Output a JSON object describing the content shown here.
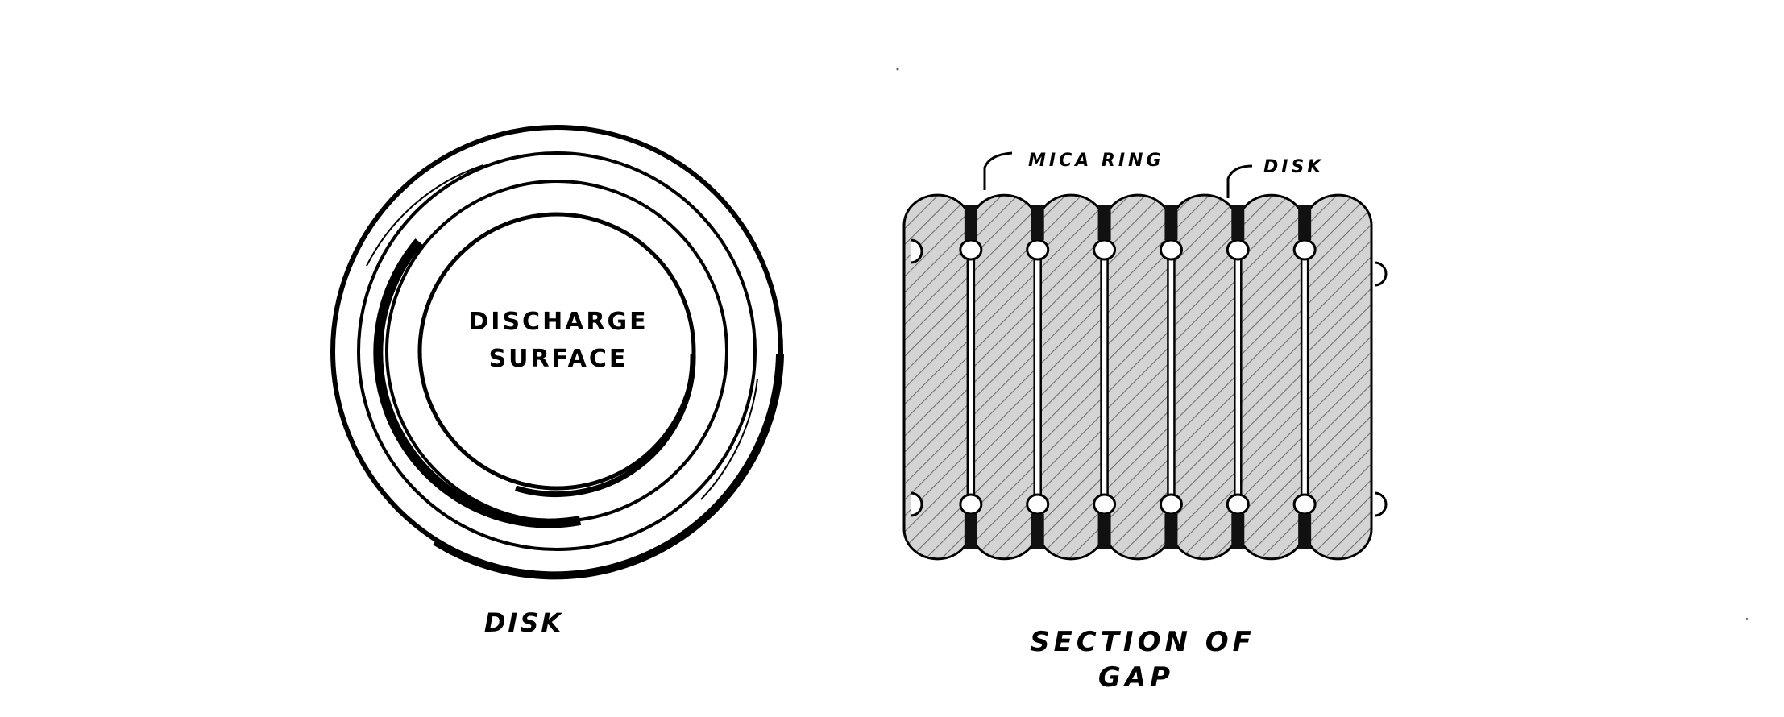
{
  "disk": {
    "inner_label_line1": "DISCHARGE",
    "inner_label_line2": "SURFACE",
    "caption": "DISK"
  },
  "section": {
    "callout_mica": "MICA RING",
    "callout_disk": "DISK",
    "caption_line1": "SECTION OF",
    "caption_line2": "GAP",
    "disk_count": 7
  },
  "colors": {
    "ink": "#000000",
    "hatch_fill": "#d9d9d9",
    "background": "#ffffff"
  }
}
